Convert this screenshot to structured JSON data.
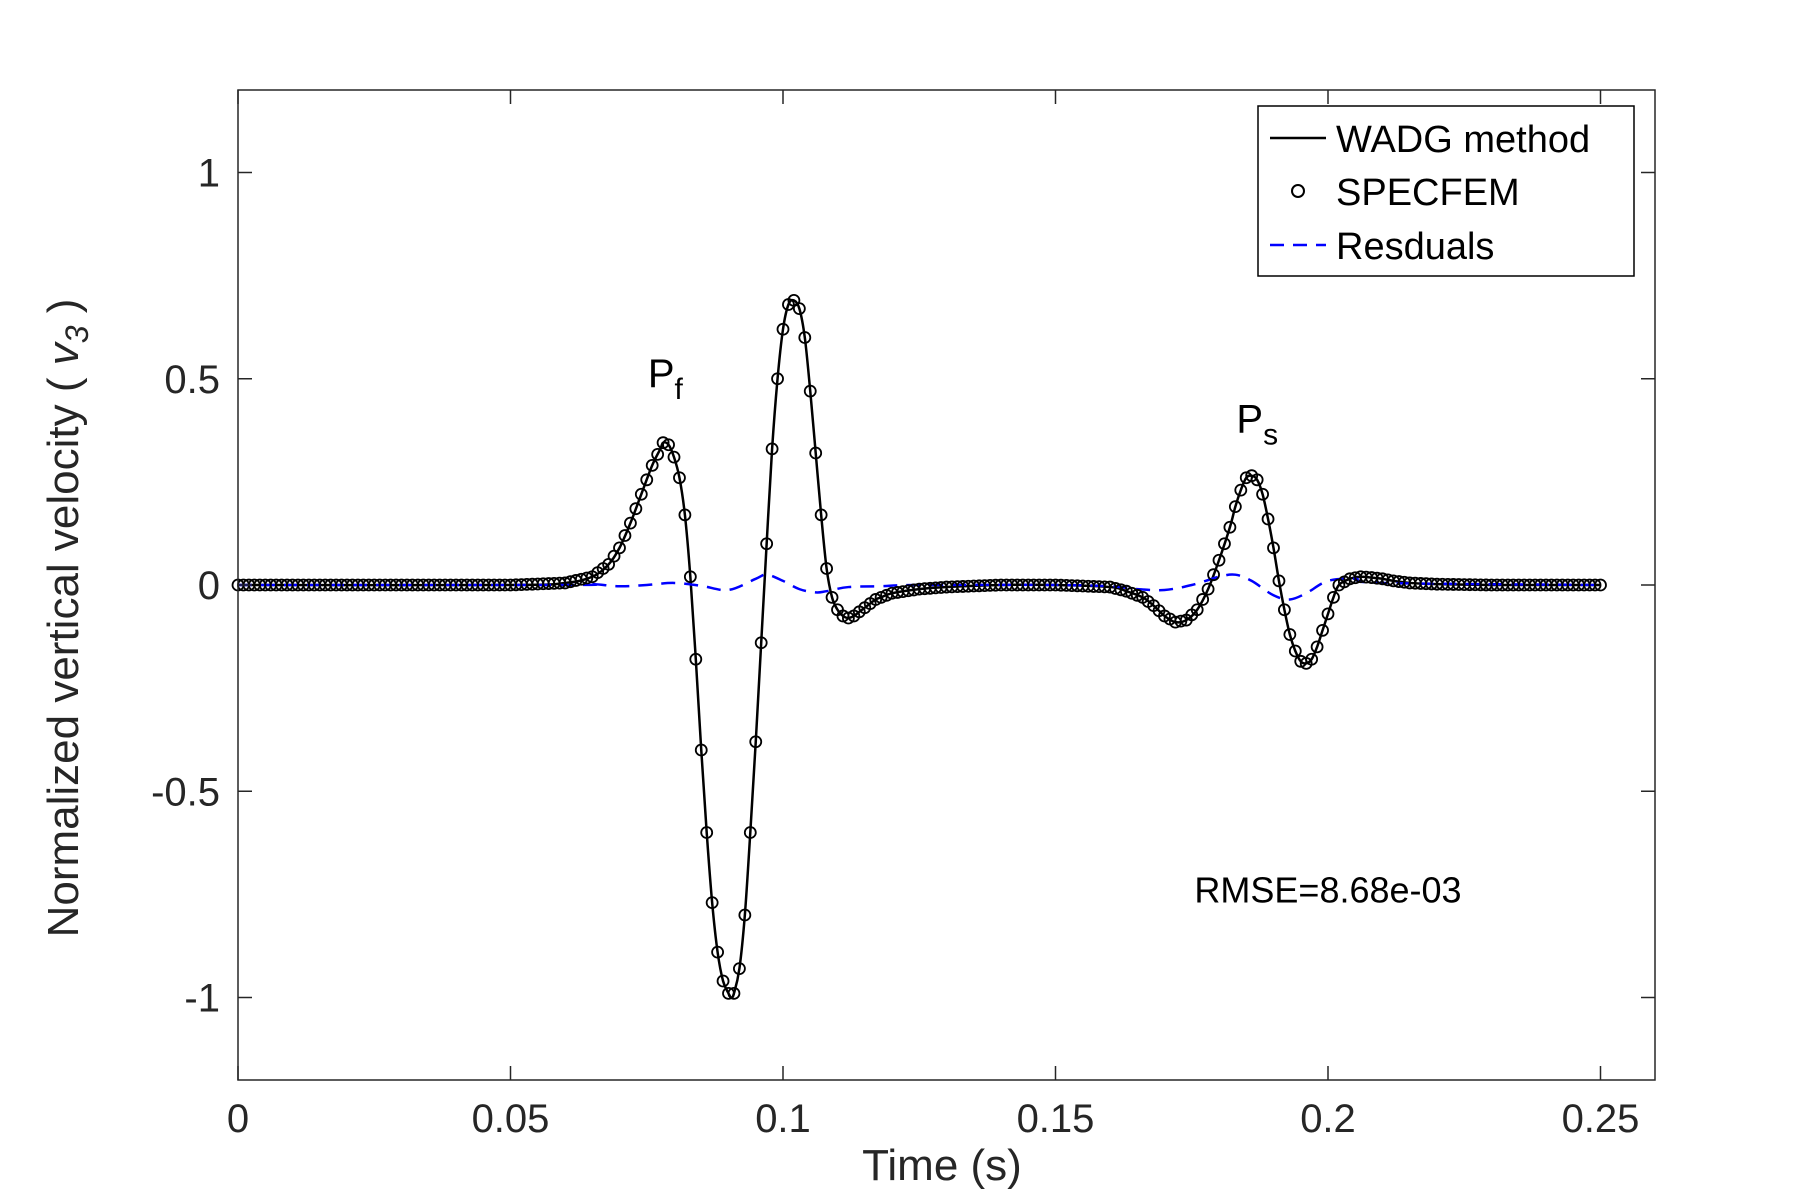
{
  "chart_data": {
    "type": "line",
    "xlabel": "Time (s)",
    "ylabel_main": "Normalized vertical velocity ( ",
    "ylabel_var": "v",
    "ylabel_sub": "3",
    "ylabel_end": " )",
    "xlim": [
      0,
      0.26
    ],
    "ylim": [
      -1.2,
      1.2
    ],
    "x_ticks": [
      0,
      0.05,
      0.1,
      0.15,
      0.2,
      0.25
    ],
    "x_tick_labels": [
      "0",
      "0.05",
      "0.1",
      "0.15",
      "0.2",
      "0.25"
    ],
    "y_ticks": [
      1,
      0.5,
      0,
      -0.5,
      -1
    ],
    "y_tick_labels": [
      "1",
      "0.5",
      "0",
      "-0.5",
      "-1"
    ],
    "grid": false,
    "legend_position": "top-right",
    "legend": [
      "WADG method",
      "SPECFEM",
      "Resduals"
    ],
    "colors": {
      "wadg": "#000000",
      "specfem": "#000000",
      "residuals": "#0000ff",
      "axes": "#262626"
    },
    "annotations": [
      {
        "text": "P",
        "sub": "f",
        "x": 0.0785,
        "y": 0.48
      },
      {
        "text": "P",
        "sub": "s",
        "x": 0.1865,
        "y": 0.37
      }
    ],
    "rmse_text": "RMSE=8.68e-03",
    "rmse_pos": {
      "x": 0.2,
      "y": -0.77
    },
    "series": [
      {
        "name": "WADG method",
        "style": "solid",
        "x": [
          0,
          0.05,
          0.06,
          0.065,
          0.068,
          0.07,
          0.072,
          0.074,
          0.076,
          0.0775,
          0.078,
          0.079,
          0.08,
          0.081,
          0.082,
          0.083,
          0.084,
          0.085,
          0.086,
          0.087,
          0.088,
          0.089,
          0.09,
          0.0905,
          0.091,
          0.092,
          0.093,
          0.094,
          0.095,
          0.096,
          0.097,
          0.098,
          0.099,
          0.1,
          0.101,
          0.102,
          0.103,
          0.104,
          0.105,
          0.106,
          0.107,
          0.108,
          0.109,
          0.11,
          0.111,
          0.112,
          0.113,
          0.114,
          0.115,
          0.116,
          0.117,
          0.118,
          0.12,
          0.125,
          0.13,
          0.14,
          0.15,
          0.16,
          0.163,
          0.166,
          0.168,
          0.17,
          0.172,
          0.174,
          0.176,
          0.178,
          0.18,
          0.182,
          0.183,
          0.184,
          0.185,
          0.186,
          0.187,
          0.188,
          0.189,
          0.19,
          0.191,
          0.192,
          0.193,
          0.194,
          0.195,
          0.196,
          0.197,
          0.198,
          0.199,
          0.2,
          0.201,
          0.202,
          0.204,
          0.206,
          0.208,
          0.21,
          0.212,
          0.215,
          0.22,
          0.23,
          0.25
        ],
        "y": [
          0,
          0,
          0.005,
          0.02,
          0.05,
          0.09,
          0.15,
          0.22,
          0.29,
          0.33,
          0.345,
          0.34,
          0.31,
          0.26,
          0.17,
          0.02,
          -0.18,
          -0.4,
          -0.6,
          -0.77,
          -0.89,
          -0.96,
          -0.99,
          -1.0,
          -0.99,
          -0.93,
          -0.8,
          -0.6,
          -0.38,
          -0.14,
          0.1,
          0.33,
          0.5,
          0.62,
          0.68,
          0.69,
          0.67,
          0.6,
          0.47,
          0.32,
          0.17,
          0.04,
          -0.03,
          -0.06,
          -0.075,
          -0.08,
          -0.075,
          -0.065,
          -0.055,
          -0.045,
          -0.035,
          -0.03,
          -0.02,
          -0.01,
          -0.005,
          0,
          0,
          -0.005,
          -0.015,
          -0.03,
          -0.05,
          -0.075,
          -0.09,
          -0.085,
          -0.06,
          -0.01,
          0.06,
          0.14,
          0.19,
          0.23,
          0.26,
          0.265,
          0.255,
          0.22,
          0.16,
          0.09,
          0.01,
          -0.06,
          -0.12,
          -0.16,
          -0.185,
          -0.19,
          -0.18,
          -0.15,
          -0.11,
          -0.07,
          -0.03,
          0.0,
          0.015,
          0.02,
          0.018,
          0.015,
          0.01,
          0.005,
          0.002,
          0,
          0
        ]
      },
      {
        "name": "SPECFEM",
        "style": "circles",
        "note": "sampled every 0.001 s from the WADG curve"
      },
      {
        "name": "Resduals",
        "style": "dashed",
        "x": [
          0,
          0.06,
          0.065,
          0.07,
          0.075,
          0.08,
          0.085,
          0.09,
          0.095,
          0.097,
          0.1,
          0.103,
          0.106,
          0.108,
          0.112,
          0.118,
          0.125,
          0.15,
          0.16,
          0.165,
          0.17,
          0.175,
          0.18,
          0.183,
          0.186,
          0.19,
          0.193,
          0.196,
          0.2,
          0.205,
          0.21,
          0.25
        ],
        "y": [
          0,
          0,
          0.002,
          -0.003,
          0,
          0.005,
          -0.002,
          -0.012,
          0.015,
          0.025,
          0.01,
          -0.01,
          -0.018,
          -0.015,
          -0.005,
          -0.003,
          0,
          0,
          -0.003,
          -0.01,
          -0.012,
          0,
          0.02,
          0.025,
          0.01,
          -0.025,
          -0.035,
          -0.02,
          0.01,
          0.015,
          0.005,
          0
        ]
      }
    ]
  }
}
